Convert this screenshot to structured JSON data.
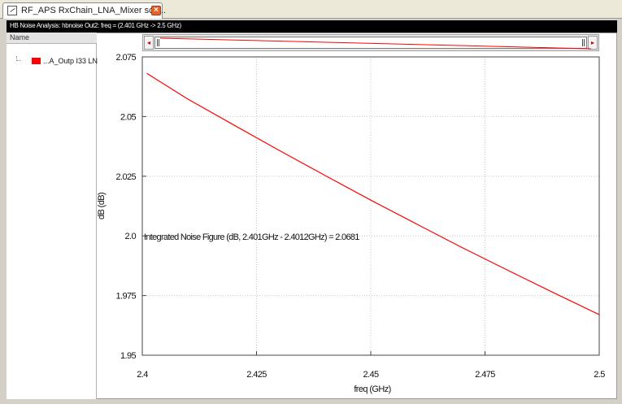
{
  "tab": {
    "title": "RF_APS RxChain_LNA_Mixer sch...",
    "close_icon": "close-icon",
    "doc_icon": "schematic-icon"
  },
  "titlebar": {
    "text": "HB Noise Analysis: hbnoise Out2: freq = (2.401 GHz -> 2.5 GHz)"
  },
  "legend": {
    "header": "Name",
    "items": [
      {
        "label": "...A_Outp I33 LN",
        "color": "#ff0000"
      }
    ]
  },
  "slider": {
    "left_arrow": "◂",
    "right_arrow": "▸"
  },
  "colors": {
    "trace": "#ff0000",
    "grid": "#c8c8c8",
    "plot_bg": "#ffffff"
  },
  "chart_data": {
    "type": "line",
    "title": "",
    "xlabel": "freq (GHz)",
    "ylabel": "dB (dB)",
    "xlim": [
      2.4,
      2.5
    ],
    "ylim": [
      1.95,
      2.075
    ],
    "xticks": [
      2.4,
      2.425,
      2.45,
      2.475,
      2.5
    ],
    "xtick_labels": [
      "2.4",
      "2.425",
      "2.45",
      "2.475",
      "2.5"
    ],
    "yticks": [
      1.95,
      1.975,
      2.0,
      2.025,
      2.05,
      2.075
    ],
    "ytick_labels": [
      "1.95",
      "1.975",
      "2.0",
      "2.025",
      "2.05",
      "2.075"
    ],
    "grid": true,
    "annotation": "Integrated Noise Figure (dB, 2.401GHz - 2.4012GHz) = 2.0681",
    "series": [
      {
        "name": "...A_Outp I33 LN",
        "color": "#ff0000",
        "x": [
          2.401,
          2.41,
          2.42,
          2.43,
          2.44,
          2.45,
          2.46,
          2.47,
          2.48,
          2.49,
          2.5
        ],
        "y": [
          2.0681,
          2.0573,
          2.0465,
          2.0358,
          2.0253,
          2.015,
          2.005,
          1.9951,
          1.9856,
          1.9762,
          1.967
        ]
      }
    ]
  }
}
